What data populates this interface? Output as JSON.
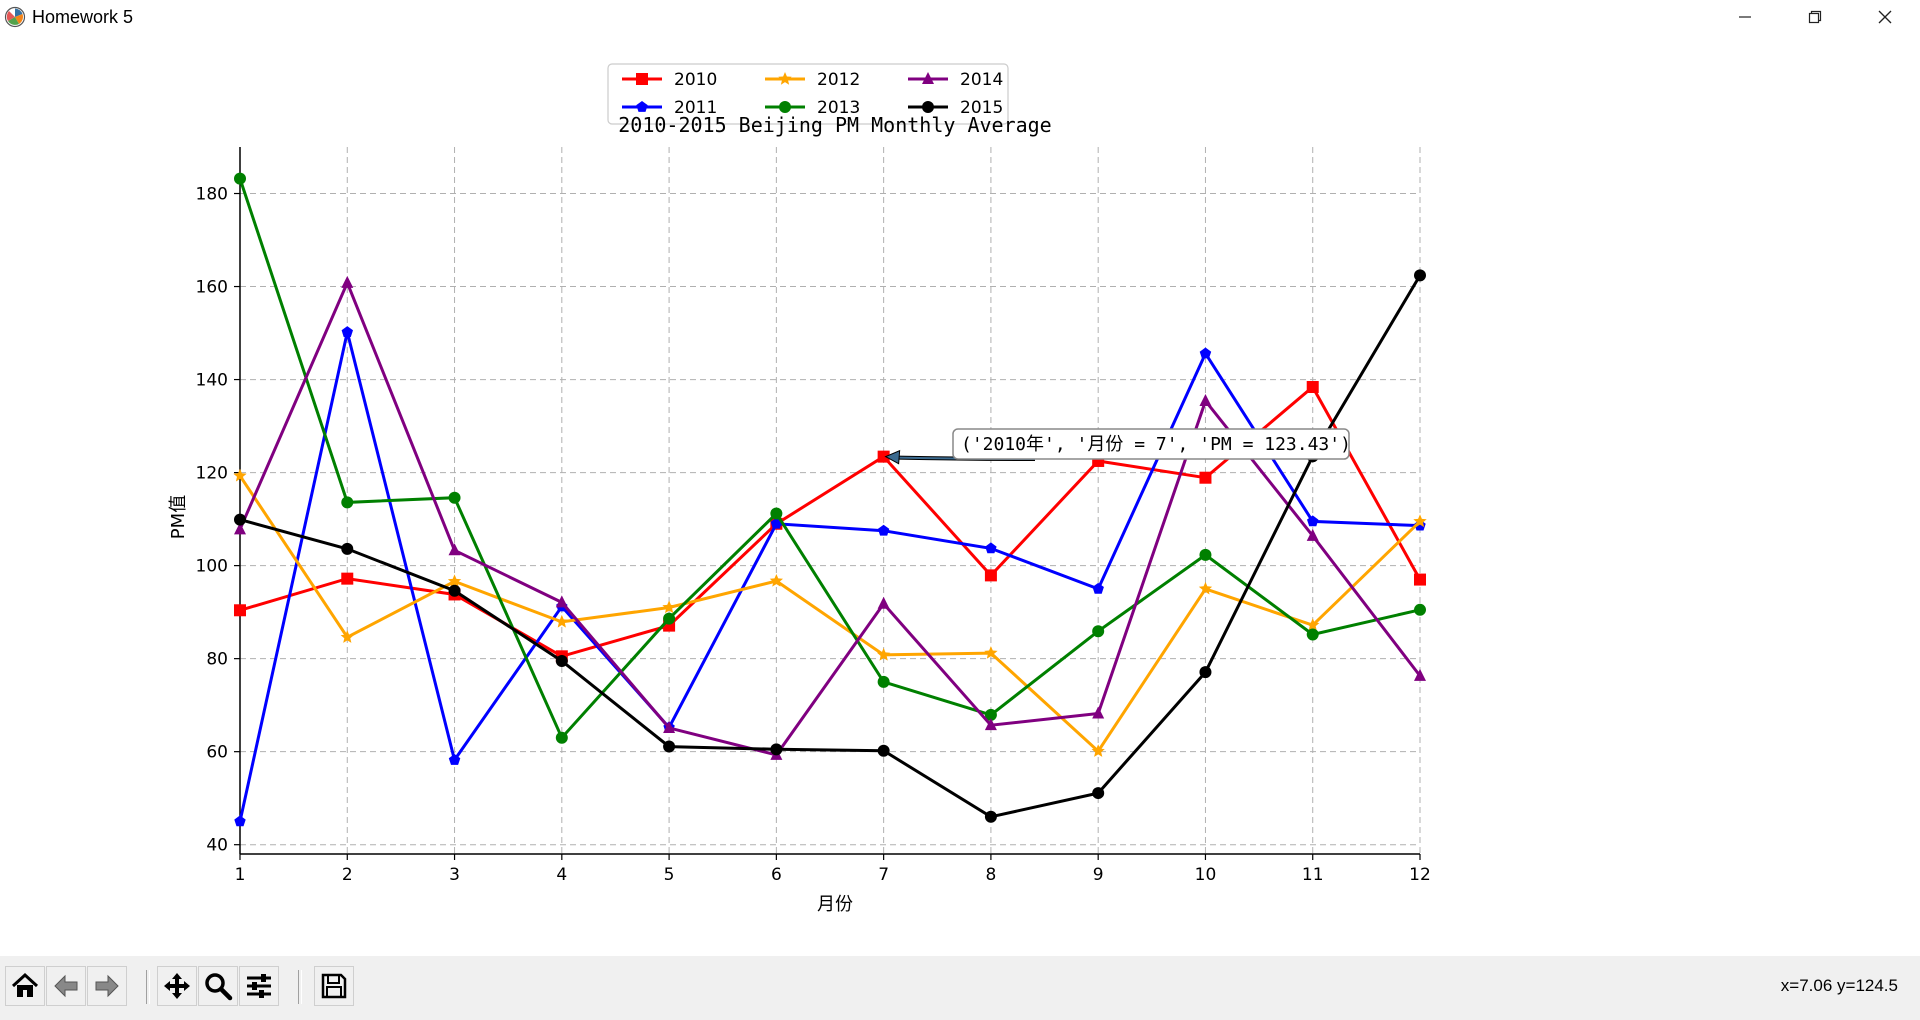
{
  "window": {
    "title": "Homework 5",
    "app_icon": "matplotlib-logo-icon",
    "controls": [
      "minimize-icon",
      "restore-icon",
      "close-icon"
    ]
  },
  "toolbar": {
    "buttons": [
      "home-icon",
      "back-arrow-icon",
      "forward-arrow-icon",
      "pan-icon",
      "zoom-icon",
      "configure-subplots-icon",
      "save-icon"
    ],
    "coordinates": "x=7.06 y=124.5"
  },
  "chart_data": {
    "type": "line",
    "title": "2010-2015 Beijing PM Monthly Average",
    "xlabel": "月份",
    "ylabel": "PM值",
    "x": [
      1,
      2,
      3,
      4,
      5,
      6,
      7,
      8,
      9,
      10,
      11,
      12
    ],
    "xlim": [
      1,
      12
    ],
    "ylim": [
      38,
      190
    ],
    "yticks": [
      40,
      60,
      80,
      100,
      120,
      140,
      160,
      180
    ],
    "grid": true,
    "grid_style": "dashed",
    "legend": {
      "placement": "top-center",
      "columns": 3
    },
    "series": [
      {
        "name": "2010",
        "color": "#ff0000",
        "marker": "square",
        "values": [
          90.4,
          97.2,
          93.8,
          80.5,
          87.1,
          109.0,
          123.43,
          97.9,
          122.5,
          118.9,
          138.4,
          97.0
        ]
      },
      {
        "name": "2011",
        "color": "#0000ff",
        "marker": "pentagon",
        "values": [
          45.0,
          150.2,
          58.2,
          91.2,
          65.2,
          109.0,
          107.5,
          103.7,
          95.0,
          145.6,
          109.5,
          108.6
        ]
      },
      {
        "name": "2012",
        "color": "#ffa500",
        "marker": "star",
        "values": [
          119.3,
          84.6,
          96.6,
          87.9,
          91.0,
          96.7,
          80.8,
          81.2,
          60.1,
          95.0,
          87.2,
          109.5
        ]
      },
      {
        "name": "2013",
        "color": "#008000",
        "marker": "circle",
        "values": [
          183.2,
          113.6,
          114.6,
          63.0,
          88.6,
          111.2,
          75.0,
          67.9,
          85.9,
          102.3,
          85.2,
          90.5
        ]
      },
      {
        "name": "2014",
        "color": "#800080",
        "marker": "triangle",
        "values": [
          107.8,
          160.8,
          103.3,
          92.1,
          65.1,
          59.3,
          91.8,
          65.7,
          68.2,
          135.4,
          106.4,
          76.3
        ]
      },
      {
        "name": "2015",
        "color": "#000000",
        "marker": "circle",
        "values": [
          109.9,
          103.6,
          94.6,
          79.5,
          61.1,
          60.5,
          60.2,
          46.0,
          51.1,
          77.1,
          123.5,
          162.4
        ]
      }
    ],
    "annotation": {
      "text": "('2010年', '月份 = 7', 'PM = 123.43')",
      "point": {
        "x": 7,
        "y": 123.43
      }
    }
  }
}
